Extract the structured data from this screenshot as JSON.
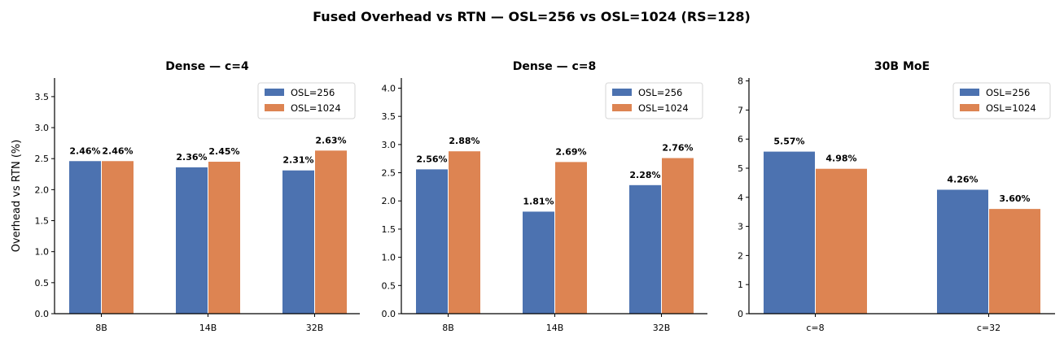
{
  "figure": {
    "title": "Fused Overhead vs RTN — OSL=256 vs OSL=1024 (RS=128)",
    "ylabel": "Overhead vs RTN (%)"
  },
  "colors": {
    "osl256": "#4c72b0",
    "osl1024": "#dd8452"
  },
  "chart_data": [
    {
      "type": "bar",
      "title": "Dense — c=4",
      "categories": [
        "8B",
        "14B",
        "32B"
      ],
      "series": [
        {
          "name": "OSL=256",
          "values": [
            2.46,
            2.36,
            2.31
          ],
          "labels": [
            "2.46%",
            "2.36%",
            "2.31%"
          ]
        },
        {
          "name": "OSL=1024",
          "values": [
            2.46,
            2.45,
            2.63
          ],
          "labels": [
            "2.46%",
            "2.45%",
            "2.63%"
          ]
        }
      ],
      "ylim": [
        0,
        3.8
      ],
      "yticks": [
        "0.0",
        "0.5",
        "1.0",
        "1.5",
        "2.0",
        "2.5",
        "3.0",
        "3.5"
      ],
      "legend": "top-right",
      "grid": false
    },
    {
      "type": "bar",
      "title": "Dense — c=8",
      "categories": [
        "8B",
        "14B",
        "32B"
      ],
      "series": [
        {
          "name": "OSL=256",
          "values": [
            2.56,
            1.81,
            2.28
          ],
          "labels": [
            "2.56%",
            "1.81%",
            "2.28%"
          ]
        },
        {
          "name": "OSL=1024",
          "values": [
            2.88,
            2.69,
            2.76
          ],
          "labels": [
            "2.88%",
            "2.69%",
            "2.76%"
          ]
        }
      ],
      "ylim": [
        0,
        4.18
      ],
      "yticks": [
        "0.0",
        "0.5",
        "1.0",
        "1.5",
        "2.0",
        "2.5",
        "3.0",
        "3.5",
        "4.0"
      ],
      "legend": "top-right",
      "grid": false
    },
    {
      "type": "bar",
      "title": "30B MoE",
      "categories": [
        "c=8",
        "c=32"
      ],
      "series": [
        {
          "name": "OSL=256",
          "values": [
            5.57,
            4.26
          ],
          "labels": [
            "5.57%",
            "4.26%"
          ]
        },
        {
          "name": "OSL=1024",
          "values": [
            4.98,
            3.6
          ],
          "labels": [
            "4.98%",
            "3.60%"
          ]
        }
      ],
      "ylim": [
        0,
        8.1
      ],
      "yticks": [
        "0",
        "1",
        "2",
        "3",
        "4",
        "5",
        "6",
        "7",
        "8"
      ],
      "legend": "top-right",
      "grid": false
    }
  ]
}
